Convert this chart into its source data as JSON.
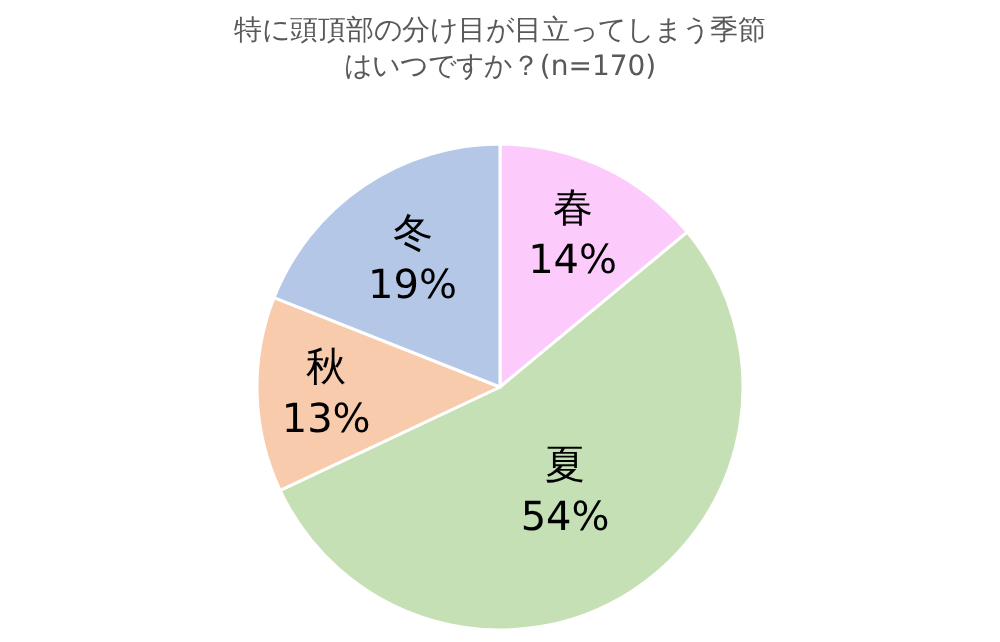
{
  "chart_data": {
    "type": "pie",
    "title": "特に頭頂部の分け目が目立ってしまう季節はいつですか？(n=170)",
    "categories": [
      "春",
      "夏",
      "秋",
      "冬"
    ],
    "values": [
      14,
      54,
      13,
      19
    ],
    "value_labels": [
      "14%",
      "54%",
      "13%",
      "19%"
    ],
    "colors": [
      "#fccbfc",
      "#c5e0b4",
      "#f8cbad",
      "#b4c7e7"
    ],
    "legend": false
  }
}
